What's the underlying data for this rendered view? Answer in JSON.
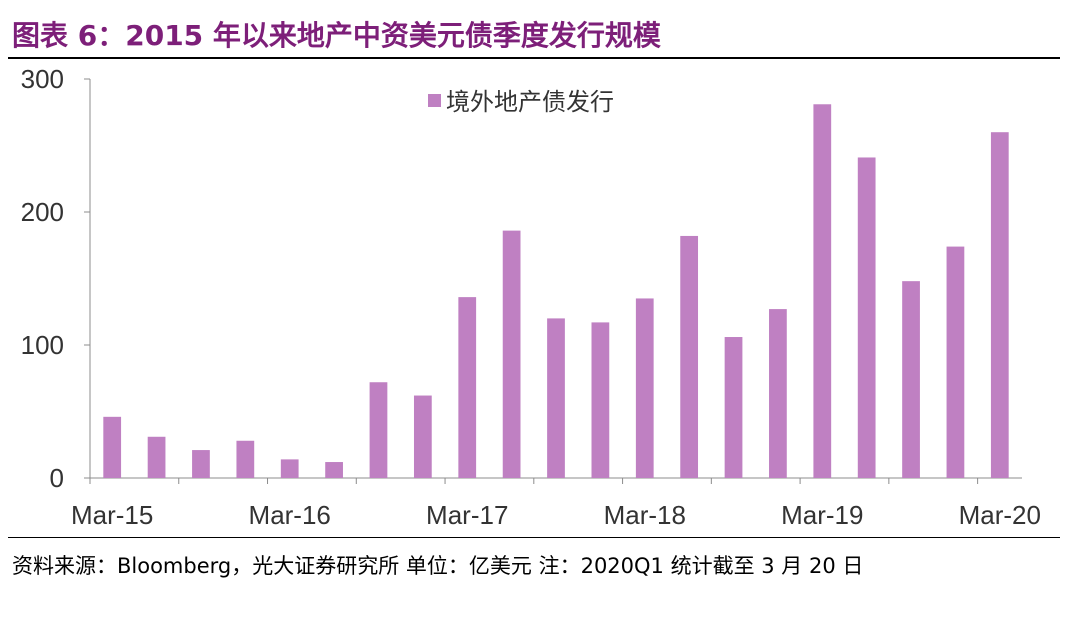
{
  "header": {
    "title": "图表 6：2015 年以来地产中资美元债季度发行规模"
  },
  "chart_data": {
    "type": "bar",
    "title": "",
    "xlabel": "",
    "ylabel": "",
    "ylim": [
      0,
      300
    ],
    "yticks": [
      0,
      100,
      200,
      300
    ],
    "categories": [
      "Mar-15",
      "Jun-15",
      "Sep-15",
      "Dec-15",
      "Mar-16",
      "Jun-16",
      "Sep-16",
      "Dec-16",
      "Mar-17",
      "Jun-17",
      "Sep-17",
      "Dec-17",
      "Mar-18",
      "Jun-18",
      "Sep-18",
      "Dec-18",
      "Mar-19",
      "Jun-19",
      "Sep-19",
      "Dec-19",
      "Mar-20"
    ],
    "xtick_labels": [
      "Mar-15",
      "Mar-16",
      "Mar-17",
      "Mar-18",
      "Mar-19",
      "Mar-20"
    ],
    "series": [
      {
        "name": "境外地产债发行",
        "color": "#bf80c2",
        "values": [
          46,
          31,
          21,
          28,
          14,
          12,
          72,
          62,
          136,
          186,
          120,
          117,
          135,
          182,
          106,
          127,
          281,
          241,
          148,
          174,
          260
        ]
      }
    ],
    "legend_position": "top-center",
    "grid": false
  },
  "footer": {
    "source": "资料来源：Bloomberg，光大证券研究所 单位：亿美元 注：2020Q1 统计截至 3 月 20 日"
  }
}
